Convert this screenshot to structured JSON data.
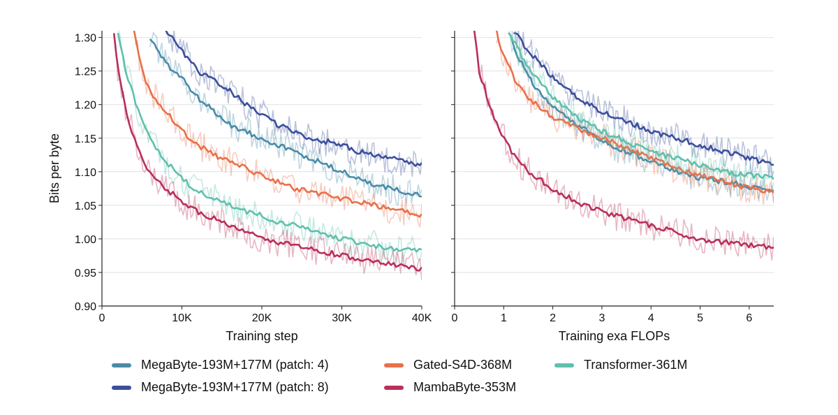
{
  "chart_data": [
    {
      "type": "line",
      "xlabel": "Training step",
      "ylabel": "Bits per byte",
      "xlim": [
        0,
        40000
      ],
      "ylim": [
        0.9,
        1.31
      ],
      "xticks": [
        0,
        10000,
        20000,
        30000,
        40000
      ],
      "xtick_labels": [
        "0",
        "10K",
        "20K",
        "30K",
        "40K"
      ],
      "yticks": [
        0.9,
        0.95,
        1.0,
        1.05,
        1.1,
        1.15,
        1.2,
        1.25,
        1.3
      ],
      "ytick_labels": [
        "0.90",
        "0.95",
        "1.00",
        "1.05",
        "1.10",
        "1.15",
        "1.20",
        "1.25",
        "1.30"
      ],
      "grid": "horizontal",
      "series": [
        {
          "name": "MegaByte-193M+177M (patch: 4)",
          "color": "#4a8ba8",
          "x": [
            6000,
            8000,
            10000,
            12000,
            14000,
            16000,
            18000,
            20000,
            22000,
            24000,
            26000,
            28000,
            30000,
            32000,
            34000,
            36000,
            38000,
            40000
          ],
          "y": [
            1.3,
            1.26,
            1.24,
            1.21,
            1.19,
            1.17,
            1.16,
            1.15,
            1.14,
            1.13,
            1.12,
            1.11,
            1.1,
            1.09,
            1.08,
            1.075,
            1.07,
            1.065
          ]
        },
        {
          "name": "MegaByte-193M+177M (patch: 8)",
          "color": "#3b4f9b",
          "x": [
            8000,
            10000,
            12000,
            14000,
            16000,
            18000,
            20000,
            22000,
            24000,
            26000,
            28000,
            30000,
            32000,
            34000,
            36000,
            38000,
            40000
          ],
          "y": [
            1.31,
            1.28,
            1.25,
            1.235,
            1.22,
            1.2,
            1.185,
            1.17,
            1.16,
            1.15,
            1.145,
            1.14,
            1.13,
            1.125,
            1.12,
            1.115,
            1.11
          ]
        },
        {
          "name": "Gated-S4D-368M",
          "color": "#e8704a",
          "x": [
            4000,
            5000,
            6000,
            8000,
            10000,
            12000,
            14000,
            16000,
            18000,
            20000,
            22000,
            24000,
            26000,
            28000,
            30000,
            32000,
            34000,
            36000,
            38000,
            40000
          ],
          "y": [
            1.31,
            1.25,
            1.22,
            1.19,
            1.16,
            1.14,
            1.125,
            1.115,
            1.105,
            1.095,
            1.085,
            1.075,
            1.07,
            1.065,
            1.06,
            1.055,
            1.05,
            1.045,
            1.04,
            1.035
          ]
        },
        {
          "name": "Transformer-361M",
          "color": "#5fc0ac",
          "x": [
            2000,
            3000,
            4000,
            5000,
            6000,
            8000,
            10000,
            12000,
            14000,
            16000,
            18000,
            20000,
            22000,
            24000,
            26000,
            28000,
            30000,
            32000,
            34000,
            36000,
            38000,
            40000
          ],
          "y": [
            1.31,
            1.25,
            1.21,
            1.175,
            1.15,
            1.115,
            1.09,
            1.07,
            1.06,
            1.05,
            1.04,
            1.035,
            1.025,
            1.02,
            1.015,
            1.005,
            1.0,
            0.995,
            0.99,
            0.985,
            0.983,
            0.982
          ]
        },
        {
          "name": "MambaByte-353M",
          "color": "#b8305a",
          "x": [
            1500,
            2000,
            3000,
            4000,
            5000,
            6000,
            8000,
            10000,
            12000,
            14000,
            16000,
            18000,
            20000,
            22000,
            24000,
            26000,
            28000,
            30000,
            32000,
            34000,
            36000,
            38000,
            40000
          ],
          "y": [
            1.31,
            1.25,
            1.19,
            1.15,
            1.12,
            1.1,
            1.075,
            1.055,
            1.04,
            1.03,
            1.02,
            1.01,
            1.0,
            0.995,
            0.99,
            0.985,
            0.98,
            0.975,
            0.97,
            0.965,
            0.962,
            0.958,
            0.955
          ]
        }
      ]
    },
    {
      "type": "line",
      "xlabel": "Training exa FLOPs",
      "ylabel": "",
      "xlim": [
        0,
        6.5
      ],
      "ylim": [
        0.9,
        1.31
      ],
      "xticks": [
        0,
        1,
        2,
        3,
        4,
        5,
        6
      ],
      "xtick_labels": [
        "0",
        "1",
        "2",
        "3",
        "4",
        "5",
        "6"
      ],
      "yticks": [
        0.9,
        0.95,
        1.0,
        1.05,
        1.1,
        1.15,
        1.2,
        1.25,
        1.3
      ],
      "grid": "horizontal",
      "series": [
        {
          "name": "MegaByte-193M+177M (patch: 4)",
          "color": "#4a8ba8",
          "x": [
            1.1,
            1.3,
            1.6,
            2.0,
            2.5,
            3.0,
            3.5,
            4.0,
            4.5,
            5.0,
            5.5,
            6.0,
            6.5
          ],
          "y": [
            1.31,
            1.27,
            1.23,
            1.195,
            1.17,
            1.145,
            1.13,
            1.115,
            1.1,
            1.09,
            1.085,
            1.078,
            1.07
          ]
        },
        {
          "name": "MegaByte-193M+177M (patch: 8)",
          "color": "#3b4f9b",
          "x": [
            1.2,
            1.5,
            2.0,
            2.5,
            3.0,
            3.5,
            4.0,
            4.5,
            5.0,
            5.5,
            6.0,
            6.5
          ],
          "y": [
            1.31,
            1.28,
            1.24,
            1.21,
            1.19,
            1.175,
            1.16,
            1.15,
            1.14,
            1.13,
            1.12,
            1.11
          ]
        },
        {
          "name": "Gated-S4D-368M",
          "color": "#e8704a",
          "x": [
            0.85,
            1.0,
            1.25,
            1.5,
            2.0,
            2.5,
            3.0,
            3.5,
            4.0,
            4.5,
            5.0,
            5.5,
            6.0,
            6.5
          ],
          "y": [
            1.31,
            1.27,
            1.235,
            1.21,
            1.18,
            1.165,
            1.15,
            1.135,
            1.12,
            1.105,
            1.095,
            1.085,
            1.075,
            1.07
          ]
        },
        {
          "name": "Transformer-361M",
          "color": "#5fc0ac",
          "x": [
            1.1,
            1.3,
            1.6,
            2.0,
            2.5,
            3.0,
            3.5,
            4.0,
            4.5,
            5.0,
            5.5,
            6.0,
            6.5
          ],
          "y": [
            1.31,
            1.28,
            1.245,
            1.21,
            1.18,
            1.16,
            1.145,
            1.13,
            1.12,
            1.11,
            1.1,
            1.095,
            1.09
          ]
        },
        {
          "name": "MambaByte-353M",
          "color": "#b8305a",
          "x": [
            0.4,
            0.5,
            0.75,
            1.0,
            1.25,
            1.5,
            2.0,
            2.5,
            3.0,
            3.5,
            4.0,
            4.5,
            5.0,
            5.5,
            6.0,
            6.5
          ],
          "y": [
            1.31,
            1.25,
            1.19,
            1.15,
            1.12,
            1.1,
            1.075,
            1.055,
            1.04,
            1.03,
            1.02,
            1.01,
            1.0,
            0.995,
            0.99,
            0.988
          ]
        }
      ]
    }
  ],
  "legend": [
    {
      "label": "MegaByte-193M+177M (patch: 4)",
      "color": "#4a8ba8"
    },
    {
      "label": "MegaByte-193M+177M (patch: 8)",
      "color": "#3b4f9b"
    },
    {
      "label": "Gated-S4D-368M",
      "color": "#e8704a"
    },
    {
      "label": "MambaByte-353M",
      "color": "#b8305a"
    },
    {
      "label": "Transformer-361M",
      "color": "#5fc0ac"
    }
  ]
}
